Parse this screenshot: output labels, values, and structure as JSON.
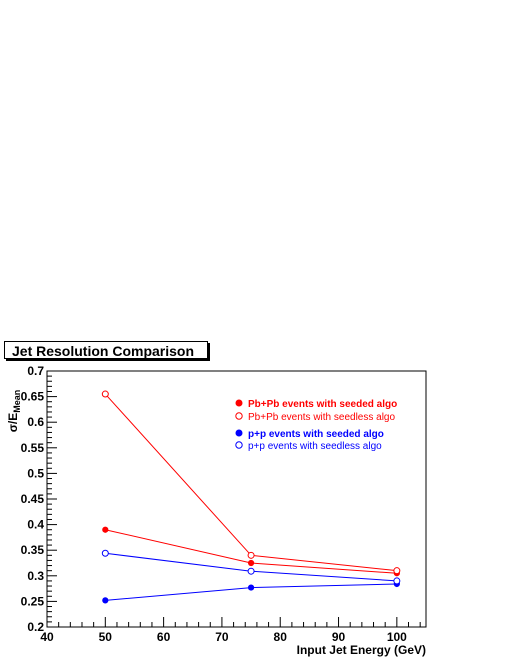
{
  "chart_data": {
    "type": "scatter",
    "title": "Jet Resolution Comparison",
    "xlabel": "Input Jet Energy (GeV)",
    "ylabel": "σ/E",
    "ylabel_sub": "Mean",
    "xlim": [
      40,
      105
    ],
    "ylim": [
      0.2,
      0.7
    ],
    "x_ticks": [
      40,
      50,
      60,
      70,
      80,
      90,
      100
    ],
    "y_ticks": [
      0.2,
      0.25,
      0.3,
      0.35,
      0.4,
      0.45,
      0.5,
      0.55,
      0.6,
      0.65,
      0.7
    ],
    "legend_position": "top-right",
    "series": [
      {
        "name": "Pb+Pb events with seeded algo",
        "color": "#ff0000",
        "marker": "filled-circle",
        "bold": true,
        "x": [
          50,
          75,
          100
        ],
        "y": [
          0.39,
          0.325,
          0.305
        ]
      },
      {
        "name": "Pb+Pb events with seedless algo",
        "color": "#ff0000",
        "marker": "open-circle",
        "bold": false,
        "x": [
          50,
          75,
          100
        ],
        "y": [
          0.655,
          0.34,
          0.31
        ]
      },
      {
        "name": "p+p events with seeded algo",
        "color": "#0000ff",
        "marker": "filled-circle",
        "bold": true,
        "x": [
          50,
          75,
          100
        ],
        "y": [
          0.252,
          0.277,
          0.284
        ]
      },
      {
        "name": "p+p events with seedless algo",
        "color": "#0000ff",
        "marker": "open-circle",
        "bold": false,
        "x": [
          50,
          75,
          100
        ],
        "y": [
          0.344,
          0.309,
          0.29
        ]
      }
    ]
  }
}
